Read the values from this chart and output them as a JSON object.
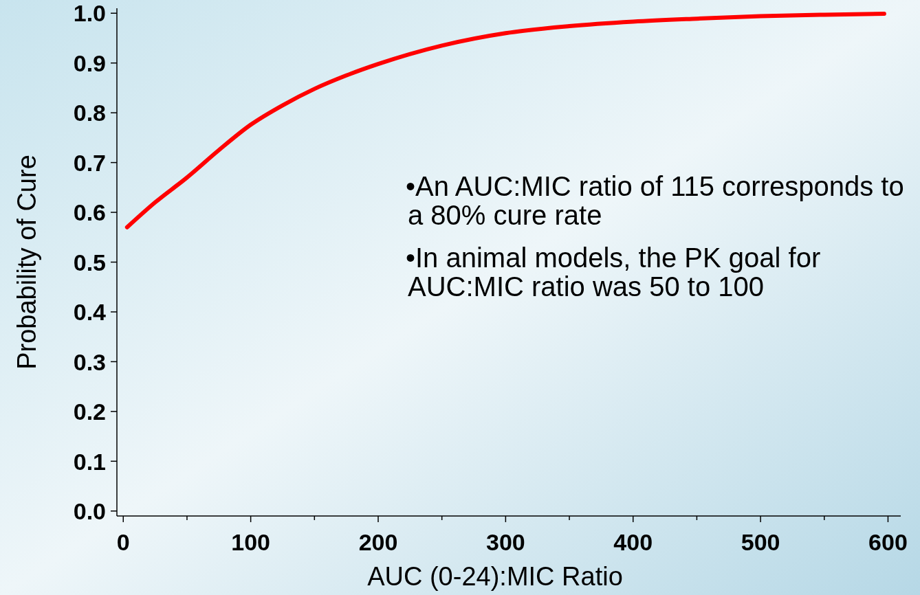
{
  "chart_data": {
    "type": "line",
    "xlabel": "AUC (0-24):MIC Ratio",
    "ylabel": "Probability of Cure",
    "annotations": [
      "•An AUC:MIC ratio of 115 corresponds to a 80% cure rate",
      "•In animal models, the PK goal for AUC:MIC ratio was 50 to 100"
    ],
    "series": [
      {
        "color": "#ff0000",
        "x": [
          3,
          25,
          50,
          75,
          100,
          125,
          150,
          175,
          200,
          250,
          300,
          350,
          400,
          450,
          500,
          550,
          597
        ],
        "values": [
          0.57,
          0.62,
          0.67,
          0.725,
          0.776,
          0.815,
          0.848,
          0.875,
          0.898,
          0.935,
          0.96,
          0.974,
          0.983,
          0.989,
          0.994,
          0.997,
          0.999
        ]
      }
    ],
    "xlim": [
      -5,
      610
    ],
    "ylim": [
      -0.01,
      1.01
    ],
    "xticks": [
      0,
      {
        "value": 50,
        "label": null
      },
      100,
      {
        "value": 150,
        "label": null
      },
      200,
      {
        "value": 250,
        "label": null
      },
      300,
      {
        "value": 350,
        "label": null
      },
      400,
      {
        "value": 450,
        "label": null
      },
      500,
      {
        "value": 550,
        "label": null
      },
      600
    ],
    "yticks": [
      {
        "value": 0,
        "label": "0.0"
      },
      0.1,
      0.2,
      0.3,
      0.4,
      0.5,
      0.6,
      0.7,
      0.8,
      0.9,
      {
        "value": 1,
        "label": "1.0"
      }
    ],
    "grid": false,
    "marker": "none",
    "line_style": "solid"
  }
}
